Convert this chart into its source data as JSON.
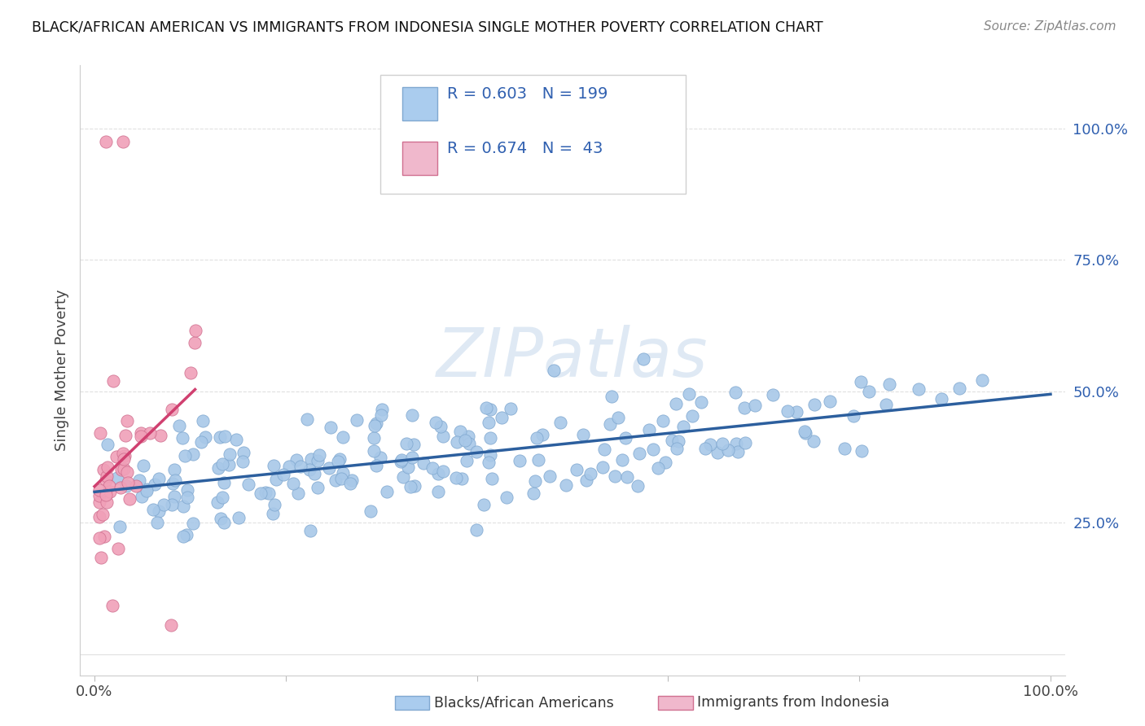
{
  "title": "BLACK/AFRICAN AMERICAN VS IMMIGRANTS FROM INDONESIA SINGLE MOTHER POVERTY CORRELATION CHART",
  "source": "Source: ZipAtlas.com",
  "ylabel": "Single Mother Poverty",
  "watermark": "ZIPatlas",
  "blue_R": 0.603,
  "blue_N": 199,
  "pink_R": 0.674,
  "pink_N": 43,
  "blue_scatter_color": "#a8c8e8",
  "blue_line_color": "#2c5f9e",
  "pink_scatter_color": "#f0a0b8",
  "pink_line_color": "#d04070",
  "legend_text_color": "#3060b0",
  "ytick_color": "#3060b0",
  "title_color": "#111111",
  "source_color": "#888888",
  "grid_color": "#e0e0e0",
  "spine_color": "#cccccc",
  "ylabel_color": "#444444",
  "xtick_color": "#444444",
  "xlim": [
    0.0,
    1.0
  ],
  "ylim": [
    0.0,
    1.0
  ],
  "blue_seed": 12345,
  "pink_seed": 77,
  "title_fontsize": 12.5,
  "source_fontsize": 11,
  "tick_fontsize": 13,
  "ylabel_fontsize": 13,
  "legend_fontsize": 14,
  "watermark_fontsize": 60,
  "scatter_size": 120
}
